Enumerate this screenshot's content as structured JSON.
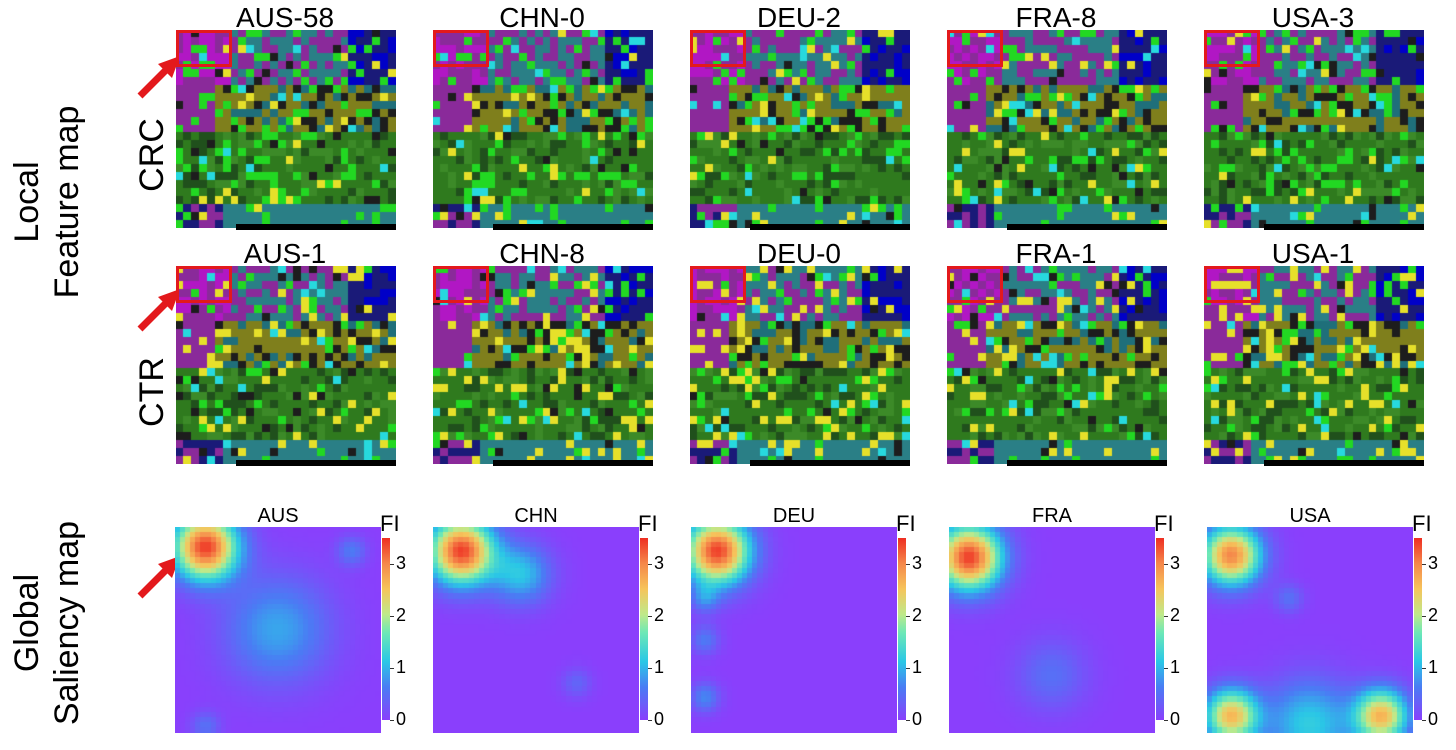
{
  "side_labels": {
    "local": [
      "Local",
      "Feature map"
    ],
    "global": [
      "Global",
      "Saliency map"
    ]
  },
  "row_labels": {
    "crc": "CRC",
    "ctr": "CTR"
  },
  "crc_titles": [
    "AUS-58",
    "CHN-0",
    "DEU-2",
    "FRA-8",
    "USA-3"
  ],
  "ctr_titles": [
    "AUS-1",
    "CHN-8",
    "DEU-0",
    "FRA-1",
    "USA-1"
  ],
  "global_titles": [
    "AUS",
    "CHN",
    "DEU",
    "FRA",
    "USA"
  ],
  "colorbar": {
    "label": "FI",
    "ticks": [
      "3",
      "2",
      "1",
      "0"
    ],
    "range": [
      0,
      3.5
    ]
  },
  "colors": {
    "highlight": "#e3191c",
    "arrow": "#e3191c"
  }
}
